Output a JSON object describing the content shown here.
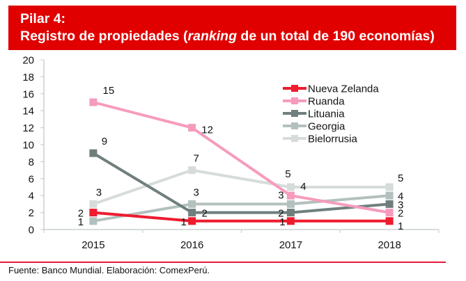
{
  "header": {
    "title_line1": "Pilar 4:",
    "title_line2_pre": "Registro de propiedades (",
    "title_line2_italic": "ranking",
    "title_line2_post": " de un total de 190 economías)",
    "background_color": "#e00000"
  },
  "footer": {
    "source": "Fuente: Banco Mundial. Elaboración: ComexPerú."
  },
  "chart_data": {
    "type": "line",
    "title": "Pilar 4: Registro de propiedades (ranking de un total de 190 economías)",
    "xlabel": "",
    "ylabel": "",
    "categories": [
      "2015",
      "2016",
      "2017",
      "2018"
    ],
    "ylim": [
      0,
      20
    ],
    "yticks": [
      0,
      2,
      4,
      6,
      8,
      10,
      12,
      14,
      16,
      18,
      20
    ],
    "grid": false,
    "legend_position": "top-right",
    "series": [
      {
        "name": "Nueva Zelanda",
        "color": "#ee1c2e",
        "values": [
          2,
          1,
          1,
          1
        ]
      },
      {
        "name": "Ruanda",
        "color": "#f69bbd",
        "values": [
          15,
          12,
          4,
          2
        ]
      },
      {
        "name": "Lituania",
        "color": "#6f7f7e",
        "values": [
          9,
          2,
          2,
          3
        ]
      },
      {
        "name": "Georgia",
        "color": "#b3c1be",
        "values": [
          1,
          3,
          3,
          4
        ]
      },
      {
        "name": "Bielorrusia",
        "color": "#d6dcda",
        "values": [
          3,
          7,
          5,
          5
        ]
      }
    ]
  }
}
